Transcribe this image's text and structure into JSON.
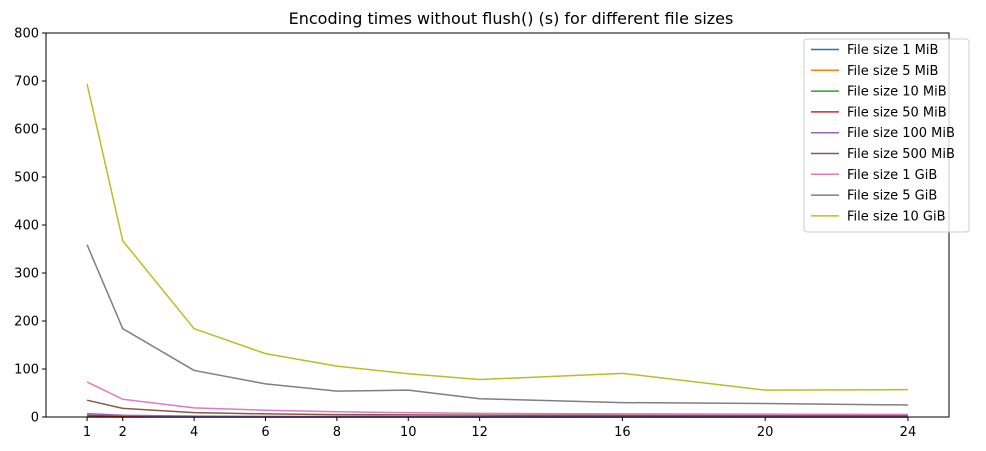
{
  "chart_data": {
    "type": "line",
    "title": "Encoding times without flush() (s) for different file sizes",
    "xlabel": "",
    "ylabel": "",
    "x": [
      1,
      2,
      4,
      6,
      8,
      10,
      12,
      16,
      20,
      24
    ],
    "x_ticks": [
      "1",
      "2",
      "4",
      "6",
      "8",
      "10",
      "12",
      "16",
      "20",
      "24"
    ],
    "y_ticks": [
      "0",
      "100",
      "200",
      "300",
      "400",
      "500",
      "600",
      "700",
      "800"
    ],
    "ylim": [
      0,
      800
    ],
    "grid": false,
    "legend_position": "top-right",
    "series": [
      {
        "name": "File size 1 MiB",
        "color": "#1f77b4",
        "values": [
          0.07,
          0.04,
          0.02,
          0.02,
          0.01,
          0.01,
          0.01,
          0.01,
          0.01,
          0.01
        ]
      },
      {
        "name": "File size 5 MiB",
        "color": "#ff7f0e",
        "values": [
          0.35,
          0.18,
          0.09,
          0.07,
          0.05,
          0.05,
          0.04,
          0.04,
          0.03,
          0.03
        ]
      },
      {
        "name": "File size 10 MiB",
        "color": "#2ca02c",
        "values": [
          0.7,
          0.36,
          0.18,
          0.13,
          0.1,
          0.09,
          0.08,
          0.07,
          0.06,
          0.06
        ]
      },
      {
        "name": "File size 50 MiB",
        "color": "#d62728",
        "values": [
          3.5,
          1.8,
          0.9,
          0.65,
          0.5,
          0.45,
          0.38,
          0.35,
          0.3,
          0.3
        ]
      },
      {
        "name": "File size 100 MiB",
        "color": "#9467bd",
        "values": [
          7,
          3.6,
          1.8,
          1.3,
          1.0,
          0.9,
          0.75,
          0.7,
          0.6,
          0.6
        ]
      },
      {
        "name": "File size 500 MiB",
        "color": "#8c564b",
        "values": [
          35,
          18,
          9,
          6.5,
          5,
          4.5,
          3.8,
          3.5,
          3,
          3
        ]
      },
      {
        "name": "File size 1 GiB",
        "color": "#e377c2",
        "values": [
          73,
          37,
          19,
          14,
          11,
          9,
          7.5,
          6.5,
          6,
          5.5
        ]
      },
      {
        "name": "File size 5 GiB",
        "color": "#7f7f7f",
        "values": [
          359,
          184,
          97,
          69,
          54,
          56,
          38,
          30,
          28,
          25
        ]
      },
      {
        "name": "File size 10 GiB",
        "color": "#bcbd22",
        "values": [
          694,
          367,
          184,
          132,
          106,
          90,
          78,
          91,
          56,
          57
        ]
      }
    ]
  }
}
